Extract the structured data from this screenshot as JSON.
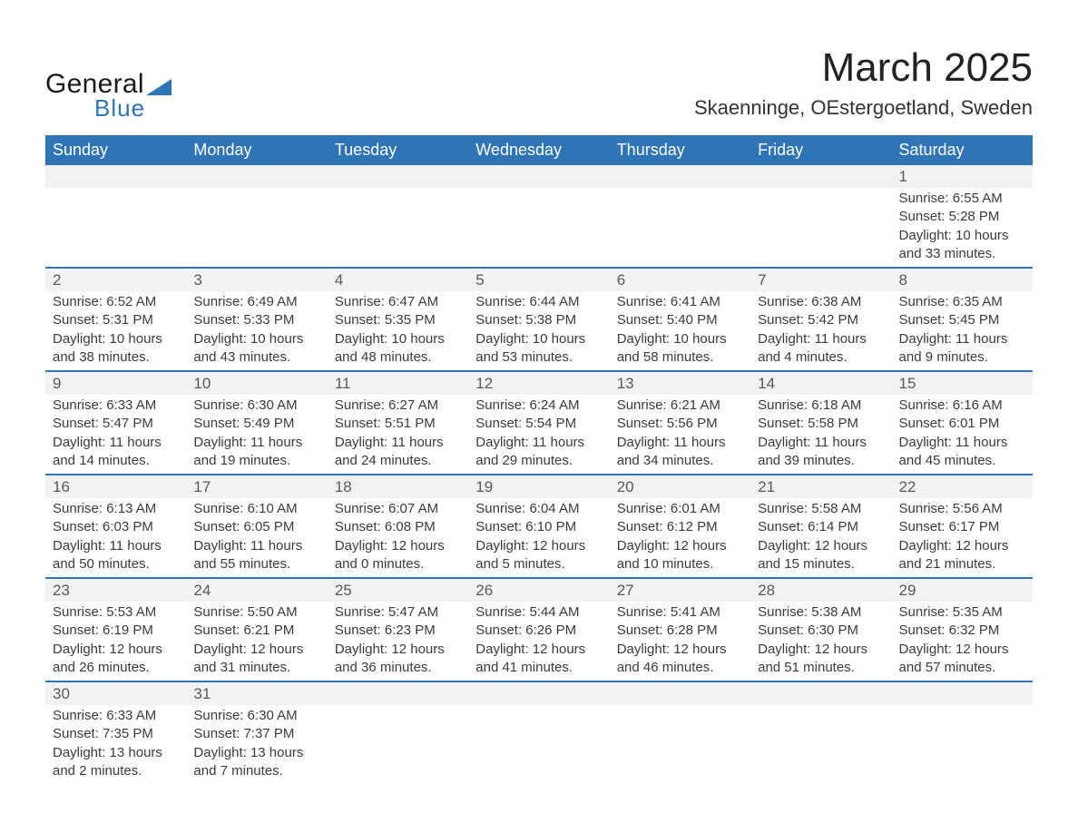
{
  "logo": {
    "text_general": "General",
    "text_blue": "Blue",
    "tri_color": "#2f75b5"
  },
  "title": "March 2025",
  "subtitle": "Skaenninge, OEstergoetland, Sweden",
  "colors": {
    "header_bg": "#2f75b5",
    "header_fg": "#ffffff",
    "daynum_bg": "#f2f2f2",
    "daynum_fg": "#595959",
    "row_divider": "#2f75b5",
    "body_text": "#3b3b3b",
    "page_bg": "#ffffff"
  },
  "fonts": {
    "title_pt": 44,
    "subtitle_pt": 22,
    "header_pt": 18,
    "daynum_pt": 17,
    "body_pt": 15
  },
  "weekdays": [
    "Sunday",
    "Monday",
    "Tuesday",
    "Wednesday",
    "Thursday",
    "Friday",
    "Saturday"
  ],
  "weeks": [
    {
      "nums": [
        "",
        "",
        "",
        "",
        "",
        "",
        "1"
      ],
      "detail": [
        "",
        "",
        "",
        "",
        "",
        "",
        "Sunrise: 6:55 AM\nSunset: 5:28 PM\nDaylight: 10 hours and 33 minutes."
      ]
    },
    {
      "nums": [
        "2",
        "3",
        "4",
        "5",
        "6",
        "7",
        "8"
      ],
      "detail": [
        "Sunrise: 6:52 AM\nSunset: 5:31 PM\nDaylight: 10 hours and 38 minutes.",
        "Sunrise: 6:49 AM\nSunset: 5:33 PM\nDaylight: 10 hours and 43 minutes.",
        "Sunrise: 6:47 AM\nSunset: 5:35 PM\nDaylight: 10 hours and 48 minutes.",
        "Sunrise: 6:44 AM\nSunset: 5:38 PM\nDaylight: 10 hours and 53 minutes.",
        "Sunrise: 6:41 AM\nSunset: 5:40 PM\nDaylight: 10 hours and 58 minutes.",
        "Sunrise: 6:38 AM\nSunset: 5:42 PM\nDaylight: 11 hours and 4 minutes.",
        "Sunrise: 6:35 AM\nSunset: 5:45 PM\nDaylight: 11 hours and 9 minutes."
      ]
    },
    {
      "nums": [
        "9",
        "10",
        "11",
        "12",
        "13",
        "14",
        "15"
      ],
      "detail": [
        "Sunrise: 6:33 AM\nSunset: 5:47 PM\nDaylight: 11 hours and 14 minutes.",
        "Sunrise: 6:30 AM\nSunset: 5:49 PM\nDaylight: 11 hours and 19 minutes.",
        "Sunrise: 6:27 AM\nSunset: 5:51 PM\nDaylight: 11 hours and 24 minutes.",
        "Sunrise: 6:24 AM\nSunset: 5:54 PM\nDaylight: 11 hours and 29 minutes.",
        "Sunrise: 6:21 AM\nSunset: 5:56 PM\nDaylight: 11 hours and 34 minutes.",
        "Sunrise: 6:18 AM\nSunset: 5:58 PM\nDaylight: 11 hours and 39 minutes.",
        "Sunrise: 6:16 AM\nSunset: 6:01 PM\nDaylight: 11 hours and 45 minutes."
      ]
    },
    {
      "nums": [
        "16",
        "17",
        "18",
        "19",
        "20",
        "21",
        "22"
      ],
      "detail": [
        "Sunrise: 6:13 AM\nSunset: 6:03 PM\nDaylight: 11 hours and 50 minutes.",
        "Sunrise: 6:10 AM\nSunset: 6:05 PM\nDaylight: 11 hours and 55 minutes.",
        "Sunrise: 6:07 AM\nSunset: 6:08 PM\nDaylight: 12 hours and 0 minutes.",
        "Sunrise: 6:04 AM\nSunset: 6:10 PM\nDaylight: 12 hours and 5 minutes.",
        "Sunrise: 6:01 AM\nSunset: 6:12 PM\nDaylight: 12 hours and 10 minutes.",
        "Sunrise: 5:58 AM\nSunset: 6:14 PM\nDaylight: 12 hours and 15 minutes.",
        "Sunrise: 5:56 AM\nSunset: 6:17 PM\nDaylight: 12 hours and 21 minutes."
      ]
    },
    {
      "nums": [
        "23",
        "24",
        "25",
        "26",
        "27",
        "28",
        "29"
      ],
      "detail": [
        "Sunrise: 5:53 AM\nSunset: 6:19 PM\nDaylight: 12 hours and 26 minutes.",
        "Sunrise: 5:50 AM\nSunset: 6:21 PM\nDaylight: 12 hours and 31 minutes.",
        "Sunrise: 5:47 AM\nSunset: 6:23 PM\nDaylight: 12 hours and 36 minutes.",
        "Sunrise: 5:44 AM\nSunset: 6:26 PM\nDaylight: 12 hours and 41 minutes.",
        "Sunrise: 5:41 AM\nSunset: 6:28 PM\nDaylight: 12 hours and 46 minutes.",
        "Sunrise: 5:38 AM\nSunset: 6:30 PM\nDaylight: 12 hours and 51 minutes.",
        "Sunrise: 5:35 AM\nSunset: 6:32 PM\nDaylight: 12 hours and 57 minutes."
      ]
    },
    {
      "nums": [
        "30",
        "31",
        "",
        "",
        "",
        "",
        ""
      ],
      "detail": [
        "Sunrise: 6:33 AM\nSunset: 7:35 PM\nDaylight: 13 hours and 2 minutes.",
        "Sunrise: 6:30 AM\nSunset: 7:37 PM\nDaylight: 13 hours and 7 minutes.",
        "",
        "",
        "",
        "",
        ""
      ]
    }
  ]
}
